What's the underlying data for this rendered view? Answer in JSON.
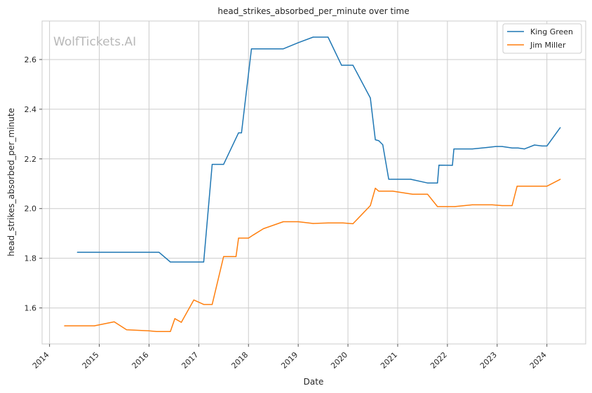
{
  "watermark": "WolfTickets.AI",
  "chart_data": {
    "type": "line",
    "title": "head_strikes_absorbed_per_minute over time",
    "xlabel": "Date",
    "ylabel": "head_strikes_absorbed_per_minute",
    "xlim": [
      2013.85,
      2024.78
    ],
    "ylim": [
      1.455,
      2.755
    ],
    "x_ticks": [
      2014,
      2015,
      2016,
      2017,
      2018,
      2019,
      2020,
      2021,
      2022,
      2023,
      2024
    ],
    "x_tick_labels": [
      "2014",
      "2015",
      "2016",
      "2017",
      "2018",
      "2019",
      "2020",
      "2021",
      "2022",
      "2023",
      "2024"
    ],
    "y_ticks": [
      1.6,
      1.8,
      2.0,
      2.2,
      2.4,
      2.6
    ],
    "y_tick_labels": [
      "1.6",
      "1.8",
      "2.0",
      "2.2",
      "2.4",
      "2.6"
    ],
    "grid": true,
    "legend_position": "top-right",
    "series": [
      {
        "name": "King Green",
        "color": "#1f77b4",
        "x": [
          2014.56,
          2016.2,
          2016.43,
          2017.1,
          2017.27,
          2017.5,
          2017.8,
          2017.86,
          2018.06,
          2018.7,
          2019.0,
          2019.3,
          2019.6,
          2019.87,
          2020.1,
          2020.45,
          2020.55,
          2020.62,
          2020.7,
          2020.82,
          2021.26,
          2021.6,
          2021.8,
          2021.83,
          2022.1,
          2022.13,
          2022.5,
          2022.8,
          2022.97,
          2023.1,
          2023.3,
          2023.42,
          2023.55,
          2023.75,
          2023.9,
          2024.0,
          2024.27
        ],
        "y": [
          1.824,
          1.824,
          1.785,
          1.785,
          2.178,
          2.178,
          2.305,
          2.305,
          2.643,
          2.643,
          2.668,
          2.69,
          2.69,
          2.577,
          2.577,
          2.445,
          2.277,
          2.273,
          2.257,
          2.118,
          2.118,
          2.103,
          2.103,
          2.175,
          2.174,
          2.24,
          2.24,
          2.246,
          2.25,
          2.25,
          2.244,
          2.244,
          2.24,
          2.256,
          2.252,
          2.252,
          2.326
        ]
      },
      {
        "name": "Jim Miller",
        "color": "#ff7f0e",
        "x": [
          2014.3,
          2014.9,
          2015.3,
          2015.55,
          2016.0,
          2016.15,
          2016.43,
          2016.52,
          2016.65,
          2016.9,
          2017.1,
          2017.27,
          2017.5,
          2017.75,
          2017.8,
          2018.0,
          2018.1,
          2018.3,
          2018.7,
          2019.0,
          2019.3,
          2019.6,
          2019.9,
          2020.1,
          2020.45,
          2020.55,
          2020.62,
          2020.9,
          2021.3,
          2021.6,
          2021.8,
          2022.15,
          2022.5,
          2022.9,
          2023.1,
          2023.3,
          2023.4,
          2023.9,
          2024.0,
          2024.27
        ],
        "y": [
          1.528,
          1.528,
          1.544,
          1.512,
          1.508,
          1.505,
          1.505,
          1.557,
          1.542,
          1.632,
          1.614,
          1.614,
          1.807,
          1.807,
          1.881,
          1.881,
          1.894,
          1.919,
          1.947,
          1.947,
          1.94,
          1.942,
          1.942,
          1.939,
          2.012,
          2.082,
          2.07,
          2.07,
          2.058,
          2.058,
          2.008,
          2.008,
          2.015,
          2.015,
          2.012,
          2.012,
          2.09,
          2.09,
          2.09,
          2.118
        ]
      }
    ]
  }
}
